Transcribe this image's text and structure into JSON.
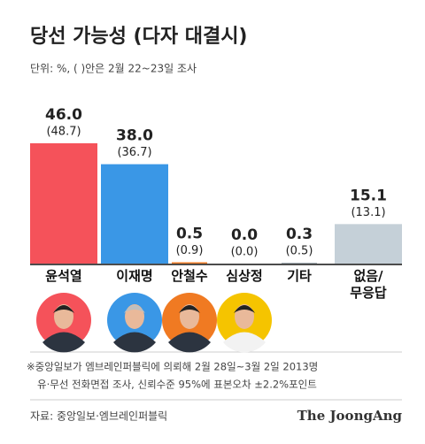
{
  "chart_data": {
    "type": "bar",
    "title": "당선 가능성 (다자 대결시)",
    "subtitle": "단위: %, ( )안은 2월 22~23일 조사",
    "categories": [
      "윤석열",
      "이재명",
      "안철수",
      "심상정",
      "기타",
      "없음/\n무응답"
    ],
    "values": [
      46.0,
      38.0,
      0.5,
      0.0,
      0.3,
      15.1
    ],
    "value_labels": [
      "46.0",
      "38.0",
      "0.5",
      "0.0",
      "0.3",
      "15.1"
    ],
    "previous_values": [
      48.7,
      36.7,
      0.9,
      0.0,
      0.5,
      13.1
    ],
    "previous_value_labels": [
      "(48.7)",
      "(36.7)",
      "(0.9)",
      "(0.0)",
      "(0.5)",
      "(13.1)"
    ],
    "colors": [
      "#f5525a",
      "#3a97e6",
      "#f07a22",
      "#f5c400",
      "#9aa5ad",
      "#c5d0d8"
    ],
    "notes": [
      "※중앙일보가 엠브레인퍼블릭에 의뢰해 2월 28일~3월 2일 2013명",
      "유·무선 전화면접 조사, 신뢰수준 95%에 표본오차 ±2.2%포인트"
    ],
    "source": "자료: 중앙일보·엠브레인퍼블릭",
    "brand": "The JoongAng"
  }
}
